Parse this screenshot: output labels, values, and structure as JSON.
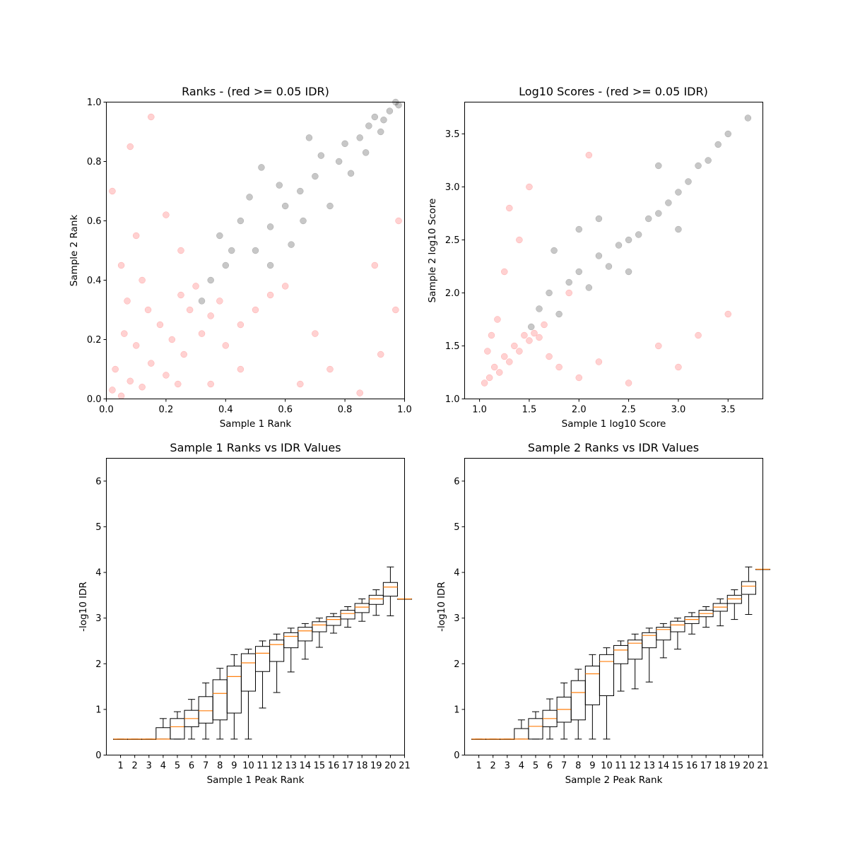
{
  "colors": {
    "pass": "#000000",
    "fail": "#ff0000",
    "median": "#ff7f0e",
    "box": "#000000"
  },
  "chart_data": [
    {
      "type": "scatter",
      "title": "Ranks - (red >= 0.05 IDR)",
      "xlabel": "Sample 1 Rank",
      "ylabel": "Sample 2 Rank",
      "xlim": [
        0.0,
        1.0
      ],
      "ylim": [
        0.0,
        1.0
      ],
      "xticks": [
        "0.0",
        "0.2",
        "0.4",
        "0.6",
        "0.8",
        "1.0"
      ],
      "yticks": [
        "0.0",
        "0.2",
        "0.4",
        "0.6",
        "0.8",
        "1.0"
      ],
      "series": [
        {
          "color": "fail",
          "points": [
            [
              0.02,
              0.03
            ],
            [
              0.05,
              0.01
            ],
            [
              0.08,
              0.06
            ],
            [
              0.03,
              0.1
            ],
            [
              0.12,
              0.04
            ],
            [
              0.15,
              0.12
            ],
            [
              0.1,
              0.18
            ],
            [
              0.2,
              0.08
            ],
            [
              0.22,
              0.2
            ],
            [
              0.18,
              0.25
            ],
            [
              0.26,
              0.15
            ],
            [
              0.28,
              0.3
            ],
            [
              0.25,
              0.35
            ],
            [
              0.32,
              0.22
            ],
            [
              0.35,
              0.28
            ],
            [
              0.3,
              0.38
            ],
            [
              0.38,
              0.33
            ],
            [
              0.14,
              0.3
            ],
            [
              0.06,
              0.22
            ],
            [
              0.24,
              0.05
            ],
            [
              0.4,
              0.18
            ],
            [
              0.45,
              0.25
            ],
            [
              0.5,
              0.3
            ],
            [
              0.55,
              0.35
            ],
            [
              0.6,
              0.38
            ],
            [
              0.05,
              0.45
            ],
            [
              0.1,
              0.55
            ],
            [
              0.02,
              0.7
            ],
            [
              0.08,
              0.85
            ],
            [
              0.15,
              0.95
            ],
            [
              0.2,
              0.62
            ],
            [
              0.25,
              0.5
            ],
            [
              0.65,
              0.05
            ],
            [
              0.75,
              0.1
            ],
            [
              0.85,
              0.02
            ],
            [
              0.92,
              0.15
            ],
            [
              0.97,
              0.3
            ],
            [
              0.9,
              0.45
            ],
            [
              0.98,
              0.6
            ],
            [
              0.7,
              0.22
            ],
            [
              0.35,
              0.05
            ],
            [
              0.45,
              0.1
            ],
            [
              0.12,
              0.4
            ],
            [
              0.07,
              0.33
            ]
          ]
        },
        {
          "color": "pass",
          "points": [
            [
              0.32,
              0.33
            ],
            [
              0.35,
              0.4
            ],
            [
              0.4,
              0.45
            ],
            [
              0.38,
              0.55
            ],
            [
              0.45,
              0.6
            ],
            [
              0.5,
              0.5
            ],
            [
              0.55,
              0.58
            ],
            [
              0.6,
              0.65
            ],
            [
              0.58,
              0.72
            ],
            [
              0.65,
              0.7
            ],
            [
              0.7,
              0.75
            ],
            [
              0.72,
              0.82
            ],
            [
              0.68,
              0.88
            ],
            [
              0.78,
              0.8
            ],
            [
              0.8,
              0.86
            ],
            [
              0.85,
              0.88
            ],
            [
              0.88,
              0.92
            ],
            [
              0.9,
              0.95
            ],
            [
              0.93,
              0.94
            ],
            [
              0.95,
              0.97
            ],
            [
              0.98,
              0.99
            ],
            [
              0.97,
              1.0
            ],
            [
              0.62,
              0.52
            ],
            [
              0.75,
              0.65
            ],
            [
              0.82,
              0.76
            ],
            [
              0.48,
              0.68
            ],
            [
              0.52,
              0.78
            ],
            [
              0.42,
              0.5
            ],
            [
              0.66,
              0.6
            ],
            [
              0.87,
              0.83
            ],
            [
              0.92,
              0.9
            ],
            [
              0.55,
              0.45
            ]
          ]
        }
      ]
    },
    {
      "type": "scatter",
      "title": "Log10 Scores - (red >= 0.05 IDR)",
      "xlabel": "Sample 1 log10 Score",
      "ylabel": "Sample 2 log10 Score",
      "xlim": [
        0.85,
        3.85
      ],
      "ylim": [
        1.0,
        3.8
      ],
      "xticks": [
        "1.0",
        "1.5",
        "2.0",
        "2.5",
        "3.0",
        "3.5"
      ],
      "yticks": [
        "1.0",
        "1.5",
        "2.0",
        "2.5",
        "3.0",
        "3.5"
      ],
      "series": [
        {
          "color": "fail",
          "points": [
            [
              1.05,
              1.15
            ],
            [
              1.1,
              1.2
            ],
            [
              1.15,
              1.3
            ],
            [
              1.2,
              1.25
            ],
            [
              1.25,
              1.4
            ],
            [
              1.3,
              1.35
            ],
            [
              1.35,
              1.5
            ],
            [
              1.4,
              1.45
            ],
            [
              1.45,
              1.6
            ],
            [
              1.5,
              1.55
            ],
            [
              1.55,
              1.62
            ],
            [
              1.6,
              1.58
            ],
            [
              1.08,
              1.45
            ],
            [
              1.12,
              1.6
            ],
            [
              1.18,
              1.75
            ],
            [
              1.25,
              2.2
            ],
            [
              1.3,
              2.8
            ],
            [
              1.4,
              2.5
            ],
            [
              1.5,
              3.0
            ],
            [
              1.7,
              1.4
            ],
            [
              1.8,
              1.3
            ],
            [
              2.0,
              1.2
            ],
            [
              2.2,
              1.35
            ],
            [
              2.5,
              1.15
            ],
            [
              2.8,
              1.5
            ],
            [
              3.0,
              1.3
            ],
            [
              3.2,
              1.6
            ],
            [
              3.5,
              1.8
            ],
            [
              2.1,
              3.3
            ],
            [
              1.9,
              2.0
            ],
            [
              1.65,
              1.7
            ]
          ]
        },
        {
          "color": "pass",
          "points": [
            [
              1.52,
              1.68
            ],
            [
              1.6,
              1.85
            ],
            [
              1.7,
              2.0
            ],
            [
              1.8,
              1.8
            ],
            [
              1.9,
              2.1
            ],
            [
              2.0,
              2.2
            ],
            [
              2.1,
              2.05
            ],
            [
              2.2,
              2.35
            ],
            [
              2.3,
              2.25
            ],
            [
              2.4,
              2.45
            ],
            [
              2.5,
              2.5
            ],
            [
              2.6,
              2.55
            ],
            [
              2.7,
              2.7
            ],
            [
              2.8,
              2.75
            ],
            [
              2.9,
              2.85
            ],
            [
              3.0,
              2.95
            ],
            [
              3.1,
              3.05
            ],
            [
              3.2,
              3.2
            ],
            [
              3.3,
              3.25
            ],
            [
              3.4,
              3.4
            ],
            [
              3.5,
              3.5
            ],
            [
              3.7,
              3.65
            ],
            [
              2.2,
              2.7
            ],
            [
              2.5,
              2.2
            ],
            [
              2.0,
              2.6
            ],
            [
              2.8,
              3.2
            ],
            [
              1.75,
              2.4
            ],
            [
              3.0,
              2.6
            ]
          ]
        }
      ]
    },
    {
      "type": "box",
      "title": "Sample 1 Ranks vs IDR Values",
      "xlabel": "Sample 1 Peak Rank",
      "ylabel": "-log10 IDR",
      "xlim": [
        0,
        21
      ],
      "ylim": [
        0,
        6.5
      ],
      "xticks": [
        "1",
        "2",
        "3",
        "4",
        "5",
        "6",
        "7",
        "8",
        "9",
        "10",
        "11",
        "12",
        "13",
        "14",
        "15",
        "16",
        "17",
        "18",
        "19",
        "20",
        "21"
      ],
      "yticks": [
        "0",
        "1",
        "2",
        "3",
        "4",
        "5",
        "6"
      ],
      "boxes": [
        {
          "x": 1,
          "q1": 0.35,
          "median": 0.35,
          "q3": 0.35,
          "low": 0.35,
          "high": 0.35
        },
        {
          "x": 2,
          "q1": 0.35,
          "median": 0.35,
          "q3": 0.35,
          "low": 0.35,
          "high": 0.35
        },
        {
          "x": 3,
          "q1": 0.35,
          "median": 0.35,
          "q3": 0.35,
          "low": 0.35,
          "high": 0.35
        },
        {
          "x": 4,
          "q1": 0.35,
          "median": 0.35,
          "q3": 0.6,
          "low": 0.35,
          "high": 0.8
        },
        {
          "x": 5,
          "q1": 0.35,
          "median": 0.62,
          "q3": 0.8,
          "low": 0.35,
          "high": 0.95
        },
        {
          "x": 6,
          "q1": 0.62,
          "median": 0.8,
          "q3": 0.98,
          "low": 0.35,
          "high": 1.22
        },
        {
          "x": 7,
          "q1": 0.7,
          "median": 0.97,
          "q3": 1.28,
          "low": 0.35,
          "high": 1.58
        },
        {
          "x": 8,
          "q1": 0.77,
          "median": 1.35,
          "q3": 1.65,
          "low": 0.35,
          "high": 1.9
        },
        {
          "x": 9,
          "q1": 0.92,
          "median": 1.72,
          "q3": 1.95,
          "low": 0.35,
          "high": 2.2
        },
        {
          "x": 10,
          "q1": 1.4,
          "median": 2.02,
          "q3": 2.22,
          "low": 0.35,
          "high": 2.32
        },
        {
          "x": 11,
          "q1": 1.83,
          "median": 2.23,
          "q3": 2.38,
          "low": 1.03,
          "high": 2.5
        },
        {
          "x": 12,
          "q1": 2.05,
          "median": 2.42,
          "q3": 2.52,
          "low": 1.37,
          "high": 2.65
        },
        {
          "x": 13,
          "q1": 2.35,
          "median": 2.6,
          "q3": 2.68,
          "low": 1.82,
          "high": 2.78
        },
        {
          "x": 14,
          "q1": 2.5,
          "median": 2.72,
          "q3": 2.8,
          "low": 2.1,
          "high": 2.88
        },
        {
          "x": 15,
          "q1": 2.7,
          "median": 2.85,
          "q3": 2.92,
          "low": 2.36,
          "high": 3.0
        },
        {
          "x": 16,
          "q1": 2.84,
          "median": 2.97,
          "q3": 3.03,
          "low": 2.67,
          "high": 3.1
        },
        {
          "x": 17,
          "q1": 2.98,
          "median": 3.1,
          "q3": 3.17,
          "low": 2.8,
          "high": 3.25
        },
        {
          "x": 18,
          "q1": 3.12,
          "median": 3.24,
          "q3": 3.32,
          "low": 2.93,
          "high": 3.42
        },
        {
          "x": 19,
          "q1": 3.3,
          "median": 3.42,
          "q3": 3.5,
          "low": 3.06,
          "high": 3.62
        },
        {
          "x": 20,
          "q1": 3.48,
          "median": 3.68,
          "q3": 3.78,
          "low": 3.05,
          "high": 4.12
        },
        {
          "x": 21,
          "q1": 3.42,
          "median": 3.42,
          "q3": 3.42,
          "low": 3.42,
          "high": 3.42
        }
      ]
    },
    {
      "type": "box",
      "title": "Sample 2 Ranks vs IDR Values",
      "xlabel": "Sample 2 Peak Rank",
      "ylabel": "-log10 IDR",
      "xlim": [
        0,
        21
      ],
      "ylim": [
        0,
        6.5
      ],
      "xticks": [
        "1",
        "2",
        "3",
        "4",
        "5",
        "6",
        "7",
        "8",
        "9",
        "10",
        "11",
        "12",
        "13",
        "14",
        "15",
        "16",
        "17",
        "18",
        "19",
        "20",
        "21"
      ],
      "yticks": [
        "0",
        "1",
        "2",
        "3",
        "4",
        "5",
        "6"
      ],
      "boxes": [
        {
          "x": 1,
          "q1": 0.35,
          "median": 0.35,
          "q3": 0.35,
          "low": 0.35,
          "high": 0.35
        },
        {
          "x": 2,
          "q1": 0.35,
          "median": 0.35,
          "q3": 0.35,
          "low": 0.35,
          "high": 0.35
        },
        {
          "x": 3,
          "q1": 0.35,
          "median": 0.35,
          "q3": 0.35,
          "low": 0.35,
          "high": 0.35
        },
        {
          "x": 4,
          "q1": 0.35,
          "median": 0.35,
          "q3": 0.58,
          "low": 0.35,
          "high": 0.77
        },
        {
          "x": 5,
          "q1": 0.35,
          "median": 0.63,
          "q3": 0.8,
          "low": 0.35,
          "high": 0.95
        },
        {
          "x": 6,
          "q1": 0.62,
          "median": 0.8,
          "q3": 0.98,
          "low": 0.35,
          "high": 1.23
        },
        {
          "x": 7,
          "q1": 0.72,
          "median": 1.0,
          "q3": 1.27,
          "low": 0.35,
          "high": 1.58
        },
        {
          "x": 8,
          "q1": 0.77,
          "median": 1.37,
          "q3": 1.63,
          "low": 0.35,
          "high": 1.88
        },
        {
          "x": 9,
          "q1": 1.1,
          "median": 1.78,
          "q3": 1.95,
          "low": 0.35,
          "high": 2.2
        },
        {
          "x": 10,
          "q1": 1.3,
          "median": 2.05,
          "q3": 2.2,
          "low": 0.35,
          "high": 2.35
        },
        {
          "x": 11,
          "q1": 2.0,
          "median": 2.3,
          "q3": 2.4,
          "low": 1.4,
          "high": 2.5
        },
        {
          "x": 12,
          "q1": 2.1,
          "median": 2.45,
          "q3": 2.52,
          "low": 1.45,
          "high": 2.65
        },
        {
          "x": 13,
          "q1": 2.35,
          "median": 2.62,
          "q3": 2.68,
          "low": 1.6,
          "high": 2.78
        },
        {
          "x": 14,
          "q1": 2.52,
          "median": 2.75,
          "q3": 2.8,
          "low": 2.13,
          "high": 2.88
        },
        {
          "x": 15,
          "q1": 2.7,
          "median": 2.85,
          "q3": 2.93,
          "low": 2.32,
          "high": 3.0
        },
        {
          "x": 16,
          "q1": 2.88,
          "median": 2.97,
          "q3": 3.03,
          "low": 2.65,
          "high": 3.12
        },
        {
          "x": 17,
          "q1": 3.03,
          "median": 3.1,
          "q3": 3.17,
          "low": 2.8,
          "high": 3.25
        },
        {
          "x": 18,
          "q1": 3.15,
          "median": 3.24,
          "q3": 3.32,
          "low": 2.83,
          "high": 3.42
        },
        {
          "x": 19,
          "q1": 3.32,
          "median": 3.42,
          "q3": 3.5,
          "low": 2.97,
          "high": 3.62
        },
        {
          "x": 20,
          "q1": 3.52,
          "median": 3.7,
          "q3": 3.8,
          "low": 3.08,
          "high": 4.12
        },
        {
          "x": 21,
          "q1": 4.07,
          "median": 4.07,
          "q3": 4.07,
          "low": 4.07,
          "high": 4.07
        }
      ]
    }
  ]
}
